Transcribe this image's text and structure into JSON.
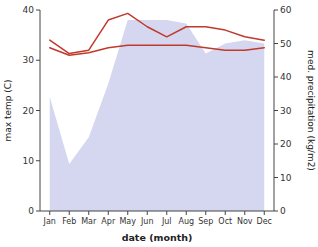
{
  "chart_data": {
    "type": "line",
    "x_label": "date (month)",
    "y_label": "max temp (C)",
    "y2_label": "med. precipitation (kg/m2)",
    "categories": [
      "Jan",
      "Feb",
      "Mar",
      "Apr",
      "May",
      "Jun",
      "Jul",
      "Aug",
      "Sep",
      "Oct",
      "Nov",
      "Dec"
    ],
    "series": [
      {
        "type": "area",
        "axis": "y2",
        "color": "#c5cae9",
        "values": [
          34,
          14,
          22,
          38,
          57,
          57,
          57,
          56,
          47,
          50,
          51,
          50
        ]
      },
      {
        "type": "line",
        "axis": "y2",
        "color": "#c0392b",
        "values": [
          51,
          47,
          48,
          57,
          59,
          55,
          52,
          55,
          55,
          54,
          52,
          51
        ]
      },
      {
        "type": "line",
        "color": "#c0392b",
        "values": [
          32.5,
          31.0,
          31.5,
          32.5,
          33.0,
          33.0,
          33.0,
          33.0,
          32.5,
          32.0,
          32.0,
          32.5
        ]
      }
    ],
    "ylim": [
      0,
      40
    ],
    "yticks": [
      0,
      10,
      20,
      30,
      40
    ],
    "y2lim": [
      0,
      60
    ],
    "y2ticks": [
      0,
      10,
      20,
      30,
      40,
      50,
      60
    ]
  }
}
